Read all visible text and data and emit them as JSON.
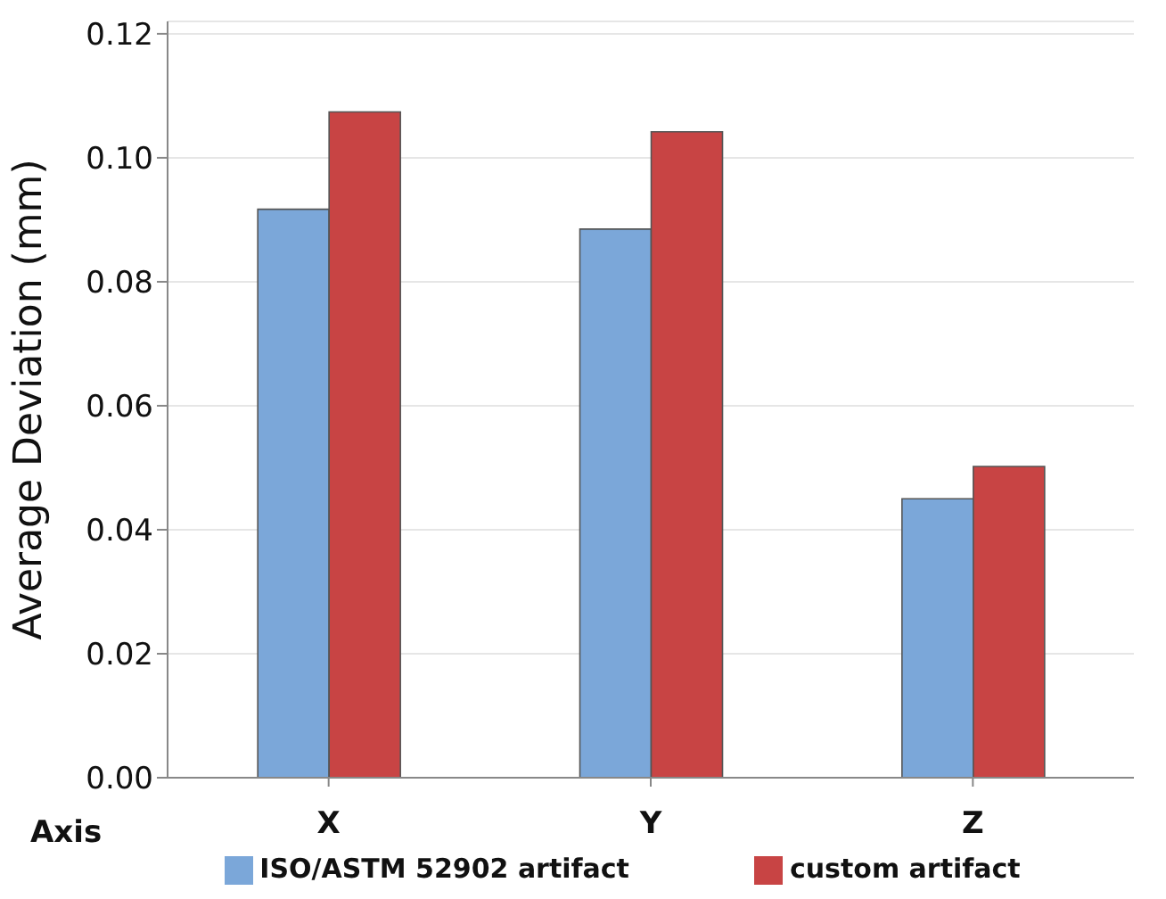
{
  "chart_data": {
    "type": "bar",
    "xlabel": "Axis",
    "ylabel": "Average Deviation (mm)",
    "categories": [
      "X",
      "Y",
      "Z"
    ],
    "series": [
      {
        "name": "ISO/ASTM 52902 artifact",
        "color": "#7ba7d9",
        "values": [
          0.0917,
          0.0885,
          0.045
        ]
      },
      {
        "name": "custom artifact",
        "color": "#c84444",
        "values": [
          0.1074,
          0.1042,
          0.0502
        ]
      }
    ],
    "ylim": [
      0,
      0.122
    ],
    "yticks": [
      {
        "value": 0,
        "label": "0.00"
      },
      0.02,
      0.04,
      0.06,
      0.08,
      {
        "value": 0.1,
        "label": "0.10"
      },
      0.12
    ],
    "grid": "y",
    "legend": "bottom"
  }
}
